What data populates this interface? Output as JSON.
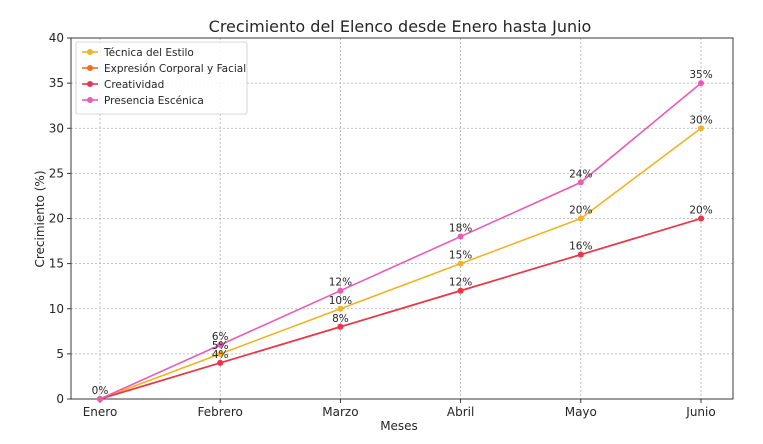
{
  "chart_data": {
    "type": "line",
    "title": "Crecimiento del Elenco desde Enero hasta Junio",
    "xlabel": "Meses",
    "ylabel": "Crecimiento (%)",
    "categories": [
      "Enero",
      "Febrero",
      "Marzo",
      "Abril",
      "Mayo",
      "Junio"
    ],
    "ylim": [
      0,
      40
    ],
    "yticks": [
      0,
      5,
      10,
      15,
      20,
      25,
      30,
      35,
      40
    ],
    "grid": true,
    "legend_position": "top-left",
    "series": [
      {
        "name": "Técnica del Estilo",
        "color": "#f0b323",
        "values": [
          0,
          5,
          10,
          15,
          20,
          30
        ],
        "labels": [
          "",
          "5%",
          "10%",
          "15%",
          "20%",
          "30%"
        ]
      },
      {
        "name": "Expresión Corporal y Facial",
        "color": "#f26b21",
        "values": [
          0,
          4,
          8,
          12,
          16,
          20
        ],
        "labels": [
          "",
          "",
          "",
          "",
          "",
          ""
        ]
      },
      {
        "name": "Creatividad",
        "color": "#e8364e",
        "values": [
          0,
          4,
          8,
          12,
          16,
          20
        ],
        "labels": [
          "",
          "4%",
          "8%",
          "12%",
          "16%",
          "20%"
        ]
      },
      {
        "name": "Presencia Escénica",
        "color": "#ea5bb5",
        "values": [
          0,
          6,
          12,
          18,
          24,
          35
        ],
        "labels": [
          "0%",
          "6%",
          "12%",
          "18%",
          "24%",
          "35%"
        ]
      }
    ]
  }
}
